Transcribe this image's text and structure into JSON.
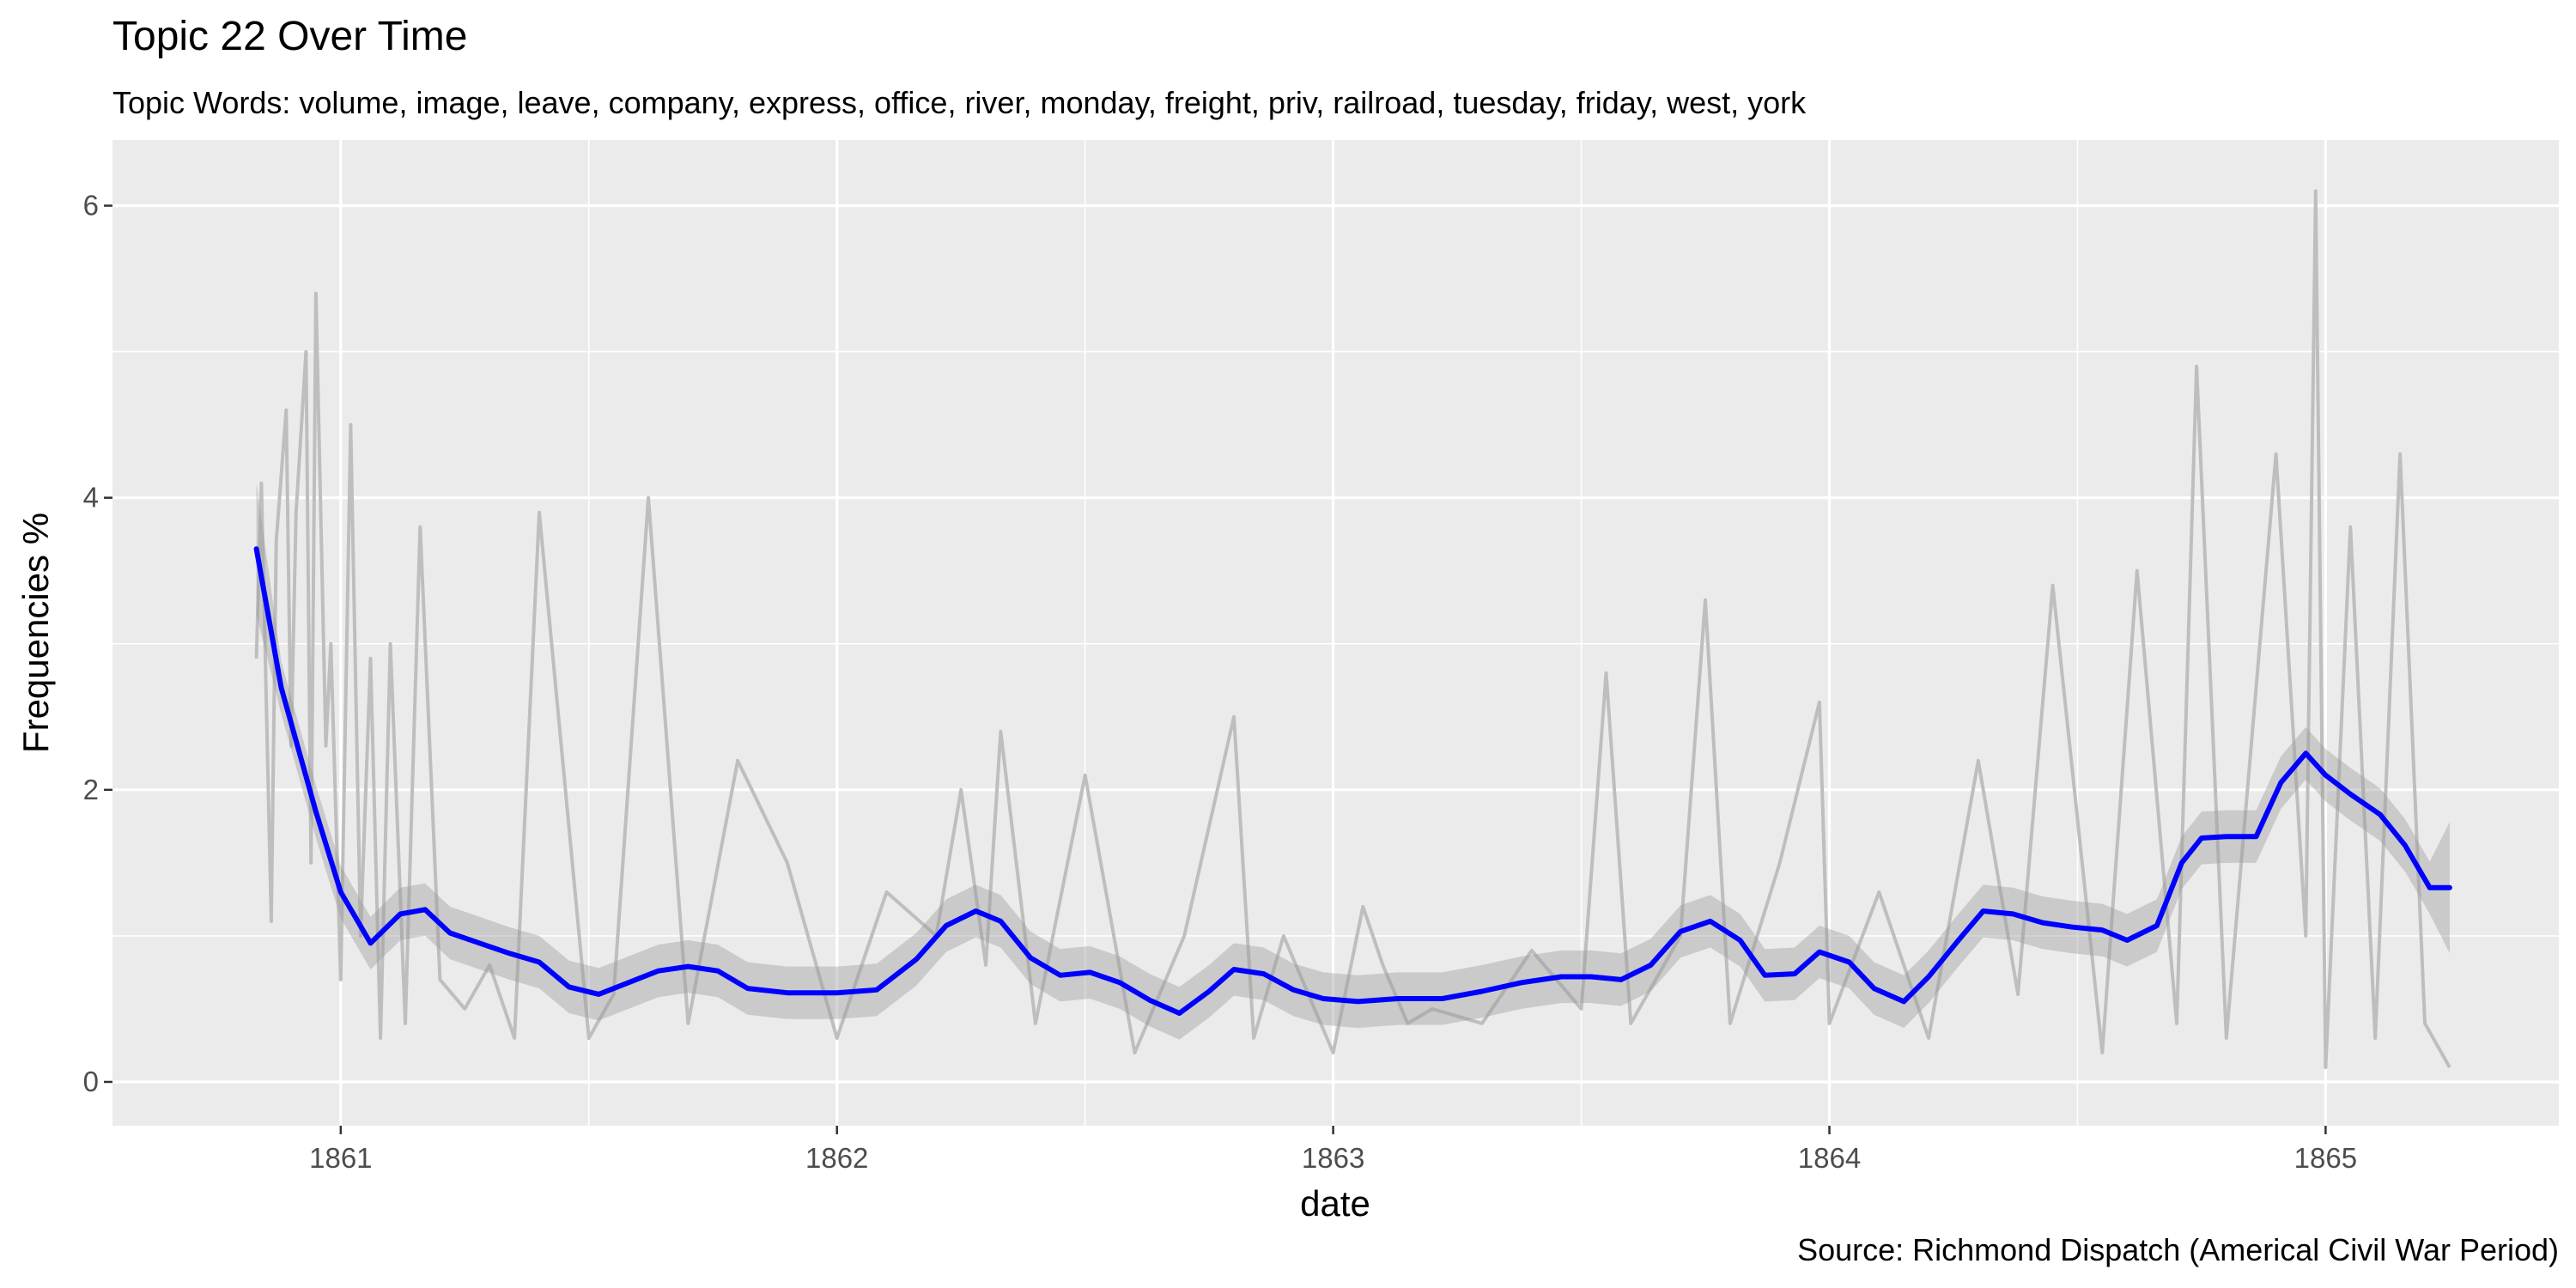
{
  "chart_data": {
    "type": "line",
    "title": "Topic 22 Over Time",
    "subtitle": "Topic Words: volume, image, leave, company, express, office, river, monday, freight, priv, railroad, tuesday, friday, west, york",
    "xlabel": "date",
    "ylabel": "Frequencies %",
    "caption": "Source: Richmond Dispatch (Americal Civil War Period)",
    "x_ticks": [
      "1861",
      "1862",
      "1863",
      "1864",
      "1865"
    ],
    "y_ticks": [
      "0",
      "2",
      "4",
      "6"
    ],
    "x_tick_values": [
      1861,
      1862,
      1863,
      1864,
      1865
    ],
    "y_tick_values": [
      0,
      2,
      4,
      6
    ],
    "xlim": [
      1860.54,
      1865.47
    ],
    "ylim": [
      -0.3,
      6.45
    ],
    "grid": true,
    "colors": {
      "panel_background": "#ebebeb",
      "grid": "#ffffff",
      "raw_series": "#bebebe",
      "confidence_band": "#999999",
      "smooth_line": "#0000ff"
    },
    "series": [
      {
        "role": "raw",
        "x": [
          1860.83,
          1860.84,
          1860.86,
          1860.87,
          1860.89,
          1860.9,
          1860.91,
          1860.93,
          1860.94,
          1860.95,
          1860.97,
          1860.98,
          1861.0,
          1861.02,
          1861.04,
          1861.06,
          1861.08,
          1861.1,
          1861.13,
          1861.16,
          1861.2,
          1861.25,
          1861.3,
          1861.35,
          1861.4,
          1861.5,
          1861.55,
          1861.62,
          1861.7,
          1861.8,
          1861.9,
          1862.0,
          1862.1,
          1862.2,
          1862.25,
          1862.3,
          1862.33,
          1862.4,
          1862.5,
          1862.6,
          1862.7,
          1862.8,
          1862.84,
          1862.9,
          1863.0,
          1863.06,
          1863.1,
          1863.15,
          1863.2,
          1863.3,
          1863.4,
          1863.5,
          1863.55,
          1863.6,
          1863.7,
          1863.75,
          1863.8,
          1863.9,
          1863.98,
          1864.0,
          1864.1,
          1864.2,
          1864.3,
          1864.38,
          1864.45,
          1864.55,
          1864.62,
          1864.7,
          1864.74,
          1864.8,
          1864.9,
          1864.96,
          1864.98,
          1865.0,
          1865.05,
          1865.1,
          1865.15,
          1865.2,
          1865.25
        ],
        "values": [
          2.9,
          4.1,
          1.1,
          3.7,
          4.6,
          2.3,
          3.9,
          5.0,
          1.5,
          5.4,
          2.3,
          3.0,
          0.7,
          4.5,
          1.0,
          2.9,
          0.3,
          3.0,
          0.4,
          3.8,
          0.7,
          0.5,
          0.8,
          0.3,
          3.9,
          0.3,
          0.6,
          4.0,
          0.4,
          2.2,
          1.5,
          0.3,
          1.3,
          1.0,
          2.0,
          0.8,
          2.4,
          0.4,
          2.1,
          0.2,
          1.0,
          2.5,
          0.3,
          1.0,
          0.2,
          1.2,
          0.8,
          0.4,
          0.5,
          0.4,
          0.9,
          0.5,
          2.8,
          0.4,
          1.0,
          3.3,
          0.4,
          1.5,
          2.6,
          0.4,
          1.3,
          0.3,
          2.2,
          0.6,
          3.4,
          0.2,
          3.5,
          0.4,
          4.9,
          0.3,
          4.3,
          1.0,
          6.1,
          0.1,
          3.8,
          0.3,
          4.3,
          0.4,
          0.1
        ]
      },
      {
        "role": "smoothed",
        "x": [
          1860.83,
          1860.88,
          1860.95,
          1861.0,
          1861.06,
          1861.12,
          1861.17,
          1861.22,
          1861.28,
          1861.34,
          1861.4,
          1861.46,
          1861.52,
          1861.58,
          1861.64,
          1861.7,
          1861.76,
          1861.82,
          1861.9,
          1862.0,
          1862.08,
          1862.16,
          1862.22,
          1862.28,
          1862.33,
          1862.39,
          1862.45,
          1862.51,
          1862.57,
          1862.63,
          1862.69,
          1862.75,
          1862.8,
          1862.86,
          1862.92,
          1862.98,
          1863.05,
          1863.13,
          1863.22,
          1863.3,
          1863.38,
          1863.46,
          1863.52,
          1863.58,
          1863.64,
          1863.7,
          1863.76,
          1863.82,
          1863.87,
          1863.93,
          1863.98,
          1864.04,
          1864.09,
          1864.15,
          1864.2,
          1864.26,
          1864.31,
          1864.37,
          1864.43,
          1864.49,
          1864.55,
          1864.6,
          1864.66,
          1864.71,
          1864.75,
          1864.8,
          1864.86,
          1864.91,
          1864.96,
          1865.0,
          1865.05,
          1865.11,
          1865.16,
          1865.21,
          1865.25
        ],
        "values": [
          3.65,
          2.7,
          1.85,
          1.3,
          0.95,
          1.15,
          1.18,
          1.02,
          0.95,
          0.88,
          0.82,
          0.65,
          0.6,
          0.68,
          0.76,
          0.79,
          0.76,
          0.64,
          0.61,
          0.61,
          0.63,
          0.84,
          1.07,
          1.17,
          1.1,
          0.85,
          0.73,
          0.75,
          0.68,
          0.56,
          0.47,
          0.62,
          0.77,
          0.74,
          0.63,
          0.57,
          0.55,
          0.57,
          0.57,
          0.62,
          0.68,
          0.72,
          0.72,
          0.7,
          0.8,
          1.03,
          1.1,
          0.97,
          0.73,
          0.74,
          0.89,
          0.82,
          0.64,
          0.55,
          0.72,
          0.97,
          1.17,
          1.15,
          1.09,
          1.06,
          1.04,
          0.97,
          1.07,
          1.5,
          1.67,
          1.68,
          1.68,
          2.05,
          2.25,
          2.1,
          1.97,
          1.83,
          1.62,
          1.33,
          1.33
        ]
      }
    ]
  }
}
